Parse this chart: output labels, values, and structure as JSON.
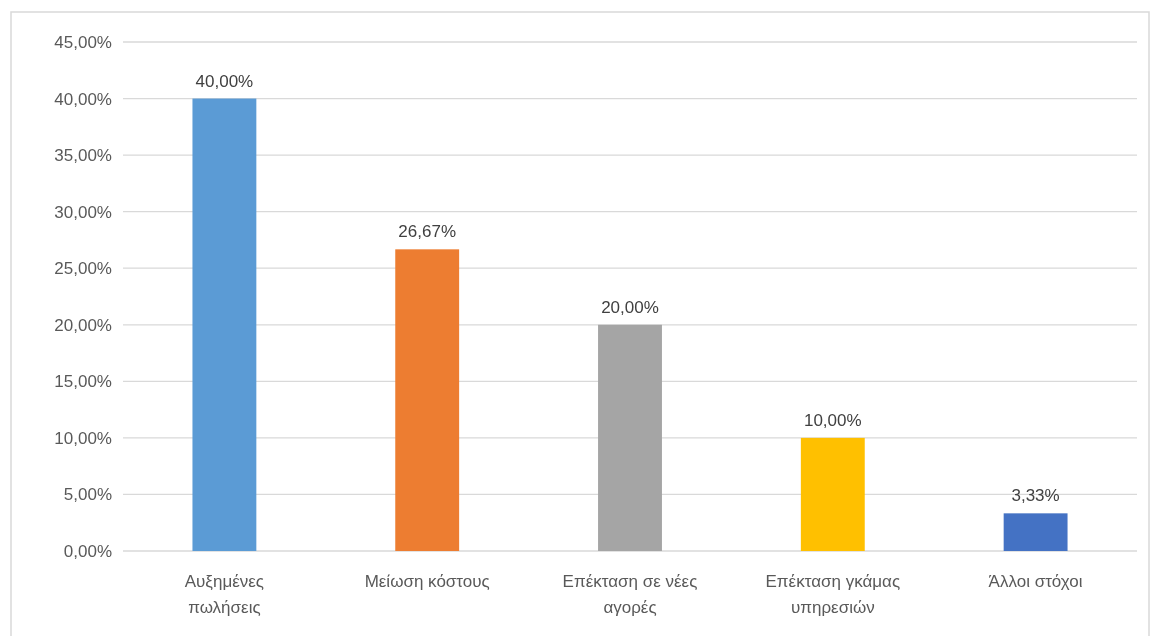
{
  "chart_data": {
    "type": "bar",
    "categories": [
      "Αυξημένες πωλήσεις",
      "Μείωση κόστους",
      "Επέκταση σε νέες αγορές",
      "Επέκταση γκάμας υπηρεσιών",
      "Άλλοι στόχοι"
    ],
    "values": [
      40,
      26.67,
      20,
      10,
      3.33
    ],
    "colors": [
      "#5b9bd5",
      "#ed7d31",
      "#a5a5a5",
      "#ffc000",
      "#4472c4"
    ],
    "value_labels": [
      "40,00%",
      "26,67%",
      "20,00%",
      "10,00%",
      "3,33%"
    ],
    "ylim": [
      0,
      45
    ],
    "yticks": [
      {
        "value": 0,
        "label": "0,00%"
      },
      {
        "value": 5,
        "label": "5,00%"
      },
      {
        "value": 10,
        "label": "10,00%"
      },
      {
        "value": 15,
        "label": "15,00%"
      },
      {
        "value": 20,
        "label": "20,00%"
      },
      {
        "value": 25,
        "label": "25,00%"
      },
      {
        "value": 30,
        "label": "30,00%"
      },
      {
        "value": 35,
        "label": "35,00%"
      },
      {
        "value": 40,
        "label": "40,00%"
      },
      {
        "value": 45,
        "label": "45,00%"
      }
    ],
    "grid": "y"
  }
}
